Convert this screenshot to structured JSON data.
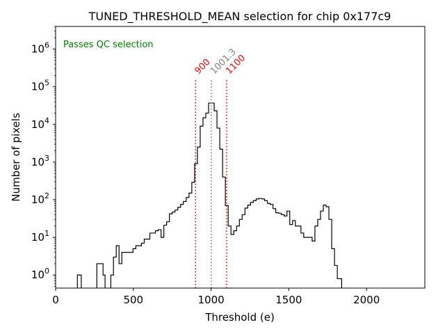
{
  "chart_data": {
    "type": "histogram",
    "title": "TUNED_THRESHOLD_MEAN selection for chip 0x177c9",
    "xlabel": "Threshold (e)",
    "ylabel": "Number of pixels",
    "yscale": "log",
    "xlim": [
      0,
      2375
    ],
    "ylim": [
      0.45,
      4000000
    ],
    "x_ticks": [
      {
        "value": 0,
        "label": "0"
      },
      {
        "value": 500,
        "label": "500"
      },
      {
        "value": 1000,
        "label": "1000"
      },
      {
        "value": 1500,
        "label": "1500"
      },
      {
        "value": 2000,
        "label": "2000"
      }
    ],
    "y_ticks": [
      {
        "value": 1,
        "base": "10",
        "exp": "0"
      },
      {
        "value": 10,
        "base": "10",
        "exp": "1"
      },
      {
        "value": 100,
        "base": "10",
        "exp": "2"
      },
      {
        "value": 1000,
        "base": "10",
        "exp": "3"
      },
      {
        "value": 10000,
        "base": "10",
        "exp": "4"
      },
      {
        "value": 100000,
        "base": "10",
        "exp": "5"
      },
      {
        "value": 1000000,
        "base": "10",
        "exp": "6"
      }
    ],
    "histogram": {
      "series_color": "#000000",
      "bins": [
        [
          140,
          165,
          1
        ],
        [
          165,
          265,
          0
        ],
        [
          265,
          305,
          2
        ],
        [
          305,
          318,
          1
        ],
        [
          318,
          355,
          0
        ],
        [
          355,
          372,
          1
        ],
        [
          372,
          390,
          3
        ],
        [
          390,
          408,
          6
        ],
        [
          408,
          426,
          2
        ],
        [
          426,
          444,
          4
        ],
        [
          444,
          462,
          4
        ],
        [
          462,
          480,
          4
        ],
        [
          480,
          498,
          4
        ],
        [
          498,
          516,
          5
        ],
        [
          516,
          534,
          6
        ],
        [
          534,
          552,
          6
        ],
        [
          552,
          570,
          7
        ],
        [
          570,
          588,
          9
        ],
        [
          588,
          606,
          9
        ],
        [
          606,
          624,
          13
        ],
        [
          624,
          642,
          13
        ],
        [
          642,
          660,
          15
        ],
        [
          660,
          678,
          16
        ],
        [
          678,
          696,
          10
        ],
        [
          696,
          714,
          21
        ],
        [
          714,
          732,
          26
        ],
        [
          732,
          750,
          42
        ],
        [
          750,
          768,
          47
        ],
        [
          768,
          786,
          53
        ],
        [
          786,
          804,
          63
        ],
        [
          804,
          822,
          75
        ],
        [
          822,
          840,
          90
        ],
        [
          840,
          858,
          115
        ],
        [
          858,
          876,
          150
        ],
        [
          876,
          894,
          290
        ],
        [
          894,
          912,
          900
        ],
        [
          912,
          930,
          2500
        ],
        [
          930,
          948,
          9000
        ],
        [
          948,
          966,
          15000
        ],
        [
          966,
          984,
          20000
        ],
        [
          984,
          1002,
          37000
        ],
        [
          1002,
          1020,
          37000
        ],
        [
          1020,
          1038,
          23000
        ],
        [
          1038,
          1056,
          8000
        ],
        [
          1056,
          1074,
          2200
        ],
        [
          1074,
          1092,
          400
        ],
        [
          1092,
          1110,
          70
        ],
        [
          1110,
          1128,
          20
        ],
        [
          1128,
          1146,
          12
        ],
        [
          1146,
          1164,
          15
        ],
        [
          1164,
          1182,
          20
        ],
        [
          1182,
          1200,
          30
        ],
        [
          1200,
          1218,
          40
        ],
        [
          1218,
          1236,
          60
        ],
        [
          1236,
          1254,
          72
        ],
        [
          1254,
          1272,
          85
        ],
        [
          1272,
          1290,
          95
        ],
        [
          1290,
          1308,
          105
        ],
        [
          1308,
          1326,
          108
        ],
        [
          1326,
          1344,
          105
        ],
        [
          1344,
          1362,
          95
        ],
        [
          1362,
          1380,
          80
        ],
        [
          1380,
          1398,
          75
        ],
        [
          1398,
          1416,
          58
        ],
        [
          1416,
          1434,
          45
        ],
        [
          1434,
          1452,
          44
        ],
        [
          1452,
          1470,
          40
        ],
        [
          1470,
          1488,
          37
        ],
        [
          1488,
          1506,
          50
        ],
        [
          1506,
          1524,
          22
        ],
        [
          1524,
          1542,
          28
        ],
        [
          1542,
          1560,
          20
        ],
        [
          1560,
          1578,
          20
        ],
        [
          1578,
          1596,
          13
        ],
        [
          1596,
          1614,
          10
        ],
        [
          1614,
          1632,
          10
        ],
        [
          1632,
          1650,
          10
        ],
        [
          1650,
          1668,
          8
        ],
        [
          1668,
          1686,
          20
        ],
        [
          1686,
          1704,
          30
        ],
        [
          1704,
          1722,
          50
        ],
        [
          1722,
          1740,
          72
        ],
        [
          1740,
          1758,
          65
        ],
        [
          1758,
          1776,
          30
        ],
        [
          1776,
          1794,
          5
        ],
        [
          1794,
          1812,
          1.8
        ],
        [
          1812,
          1840,
          0.8
        ]
      ]
    },
    "threshold_lines": [
      {
        "name": "lower-cut",
        "value": 900,
        "label": "900",
        "color": "#ff0000",
        "style": "dotted",
        "ymax": 150000
      },
      {
        "name": "mean",
        "value": 1001.3,
        "label": "1001.3",
        "color": "#808080",
        "style": "dotted",
        "ymax": 150000
      },
      {
        "name": "upper-cut",
        "value": 1100,
        "label": "1100",
        "color": "#ff0000",
        "style": "dotted",
        "ymax": 150000
      }
    ],
    "annotation": {
      "text": "Passes QC selection",
      "color": "#008000",
      "position": "top-left"
    }
  }
}
